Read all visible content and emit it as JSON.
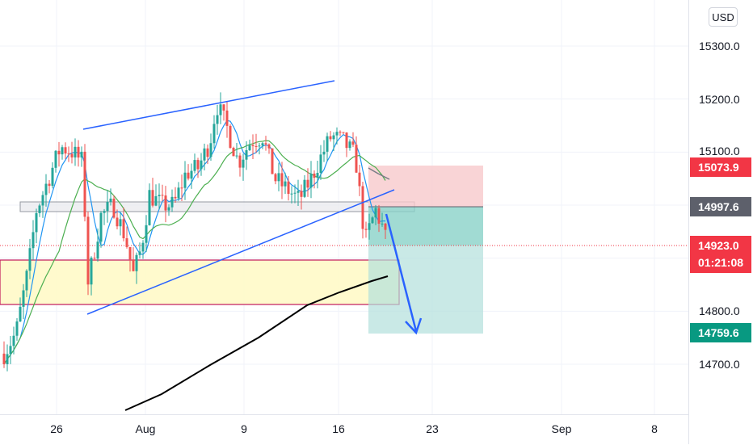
{
  "price_axis": {
    "currency": "USD",
    "ticks": [
      "15300.0",
      "15200.0",
      "15100.0",
      "14800.0",
      "14700.0"
    ],
    "tick_values": [
      15300,
      15200,
      15100,
      14800,
      14700
    ]
  },
  "time_axis": {
    "ticks": [
      "26",
      "Aug",
      "9",
      "16",
      "23",
      "Sep",
      "8"
    ]
  },
  "price_tags": {
    "stop_loss": "15073.9",
    "entry": "14997.6",
    "last_price": "14923.0",
    "countdown": "01:21:08",
    "take_profit": "14759.6"
  },
  "colors": {
    "up": "#26a69a",
    "down": "#ef5350",
    "trendline": "#2962ff",
    "stop_zone": "#f7c9cc",
    "profit_zone": "#b2dfdb",
    "demand_zone": "#fff9c4",
    "ma_long": "#000000",
    "ma_fast": "#2196f3",
    "ma_slow": "#4caf50"
  },
  "icons": {
    "projection_arrow": "arrow-down-icon"
  }
}
